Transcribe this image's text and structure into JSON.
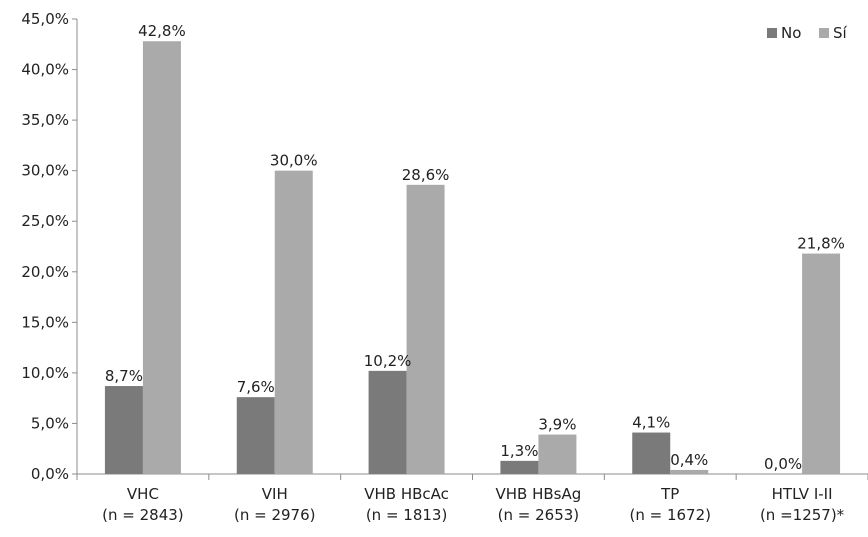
{
  "chart_data": {
    "type": "bar",
    "title": "",
    "xlabel": "",
    "ylabel": "",
    "ylim": [
      0,
      45
    ],
    "yticks": [
      "0,0%",
      "5,0%",
      "10,0%",
      "15,0%",
      "20,0%",
      "25,0%",
      "30,0%",
      "35,0%",
      "40,0%",
      "45,0%"
    ],
    "categories": [
      {
        "line1": "VHC",
        "line2": "(n = 2843)"
      },
      {
        "line1": "VIH",
        "line2": "(n = 2976)"
      },
      {
        "line1": "VHB HBcAc",
        "line2": "(n = 1813)"
      },
      {
        "line1": "VHB HBsAg",
        "line2": "(n = 2653)"
      },
      {
        "line1": "TP",
        "line2": "(n = 1672)"
      },
      {
        "line1": "HTLV I-II",
        "line2": "(n =1257)*"
      }
    ],
    "series": [
      {
        "name": "No",
        "color": "#7a7a7a",
        "values": [
          8.7,
          7.6,
          10.2,
          1.3,
          4.1,
          0.0
        ],
        "labels": [
          "8,7%",
          "7,6%",
          "10,2%",
          "1,3%",
          "4,1%",
          "0,0%"
        ]
      },
      {
        "name": "Sí",
        "color": "#aaaaaa",
        "values": [
          42.8,
          30.0,
          28.6,
          3.9,
          0.4,
          21.8
        ],
        "labels": [
          "42,8%",
          "30,0%",
          "28,6%",
          "3,9%",
          "0,4%",
          "21,8%"
        ]
      }
    ],
    "legend_position": "top-right",
    "grid": false
  }
}
